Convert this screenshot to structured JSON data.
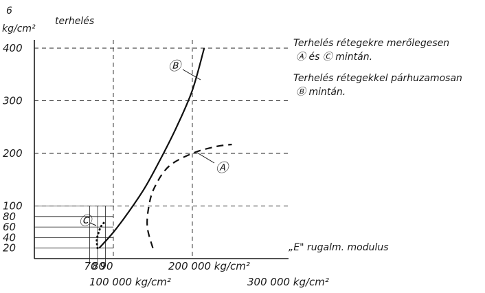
{
  "chart_data": {
    "type": "line",
    "ylabel_unit": "kg/cm²",
    "ylabel_power": "6",
    "ylabel": "terhelés",
    "xlabel": "„E\" rugalm. modulus",
    "y_ticks": [
      "400",
      "300",
      "200",
      "100",
      "80",
      "60",
      "40",
      "20"
    ],
    "x_ticks_small": [
      "70",
      "80",
      "90"
    ],
    "x_tick_labels": [
      {
        "label": "100 000 kg/cm²",
        "value": 100000
      },
      {
        "label": "200 000 kg/cm²",
        "value": 200000
      },
      {
        "label": "300 000 kg/cm²",
        "value": 300000
      }
    ],
    "xlim": [
      0,
      300000
    ],
    "ylim": [
      0,
      400
    ],
    "legend_notes": [
      "Terhelés rétegekre merőlegesen",
      "Ⓐ és Ⓒ mintán.",
      "Terhelés rétegekkel párhuzamosan",
      "Ⓑ mintán."
    ],
    "series": [
      {
        "name": "B",
        "style": "solid",
        "x": [
          82000,
          100000,
          120000,
          140000,
          160000,
          180000,
          200000,
          215000
        ],
        "y": [
          20,
          50,
          90,
          135,
          190,
          250,
          320,
          400
        ]
      },
      {
        "name": "A",
        "style": "dashed",
        "x": [
          150000,
          143000,
          145000,
          152000,
          170000,
          200000,
          230000,
          250000
        ],
        "y": [
          20,
          60,
          100,
          135,
          175,
          200,
          213,
          217
        ]
      },
      {
        "name": "C",
        "style": "dotted",
        "x": [
          80000,
          79000,
          81000,
          84000,
          88000
        ],
        "y": [
          20,
          35,
          48,
          60,
          68
        ]
      }
    ],
    "series_labels": [
      "Ⓐ",
      "Ⓑ",
      "Ⓒ"
    ]
  }
}
